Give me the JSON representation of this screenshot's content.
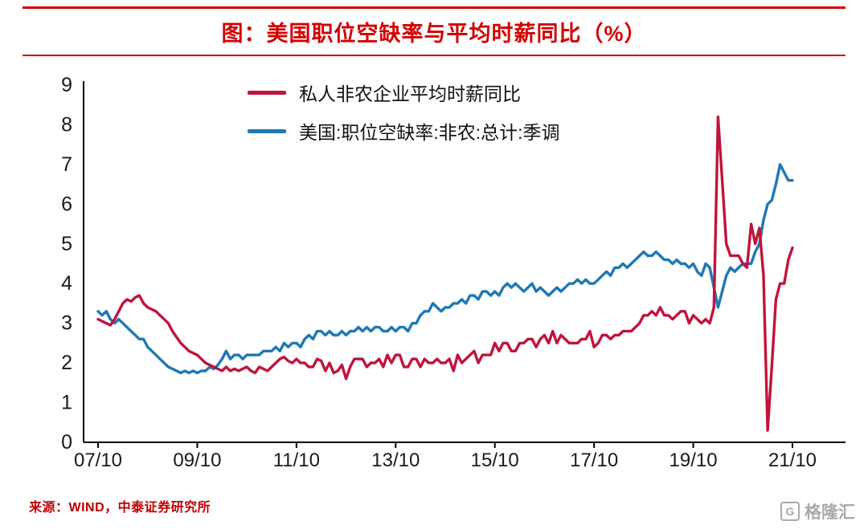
{
  "header": {
    "title": "图：美国职位空缺率与平均时薪同比（%）"
  },
  "colors": {
    "title_red": "#d40000",
    "rule_red": "#d40000",
    "source_red": "#c00000",
    "axis_text": "#1a1a1a",
    "logo_gray": "#a7aaae"
  },
  "chart_data": {
    "type": "line",
    "title": "美国职位空缺率与平均时薪同比（%）",
    "x_frequency": "monthly",
    "x_start": "2007-10",
    "x_end": "2021-10",
    "x_tick_labels": [
      "07/10",
      "09/10",
      "11/10",
      "13/10",
      "15/10",
      "17/10",
      "19/10",
      "21/10"
    ],
    "x_tick_month_index": [
      0,
      24,
      48,
      72,
      96,
      120,
      144,
      168
    ],
    "ylim": [
      0,
      9
    ],
    "yticks": [
      0,
      1,
      2,
      3,
      4,
      5,
      6,
      7,
      8,
      9
    ],
    "grid": false,
    "legend_position": "inside-top",
    "series": [
      {
        "name": "私人非农企业平均时薪同比",
        "color": "#c0143c",
        "values": [
          3.1,
          3.05,
          3.0,
          2.95,
          3.1,
          3.3,
          3.5,
          3.6,
          3.55,
          3.65,
          3.7,
          3.5,
          3.4,
          3.35,
          3.3,
          3.2,
          3.1,
          3.0,
          2.8,
          2.65,
          2.5,
          2.4,
          2.3,
          2.25,
          2.2,
          2.1,
          2.0,
          1.95,
          1.9,
          1.85,
          1.8,
          1.9,
          1.8,
          1.85,
          1.8,
          1.85,
          1.9,
          1.8,
          1.75,
          1.9,
          1.85,
          1.8,
          1.9,
          2.0,
          2.1,
          2.15,
          2.05,
          2.0,
          2.1,
          2.0,
          2.0,
          1.9,
          1.9,
          2.1,
          2.05,
          1.8,
          2.0,
          1.75,
          1.8,
          1.95,
          1.6,
          1.9,
          2.1,
          2.1,
          2.1,
          1.9,
          2.0,
          2.0,
          2.1,
          1.9,
          2.2,
          2.0,
          2.2,
          2.2,
          1.9,
          1.9,
          2.1,
          2.1,
          1.9,
          2.1,
          2.0,
          2.0,
          2.1,
          2.0,
          2.0,
          2.1,
          1.8,
          2.2,
          2.0,
          2.1,
          2.2,
          2.3,
          2.0,
          2.2,
          2.2,
          2.2,
          2.5,
          2.3,
          2.5,
          2.5,
          2.3,
          2.3,
          2.5,
          2.5,
          2.6,
          2.6,
          2.4,
          2.6,
          2.7,
          2.5,
          2.8,
          2.5,
          2.7,
          2.6,
          2.5,
          2.5,
          2.5,
          2.6,
          2.6,
          2.8,
          2.4,
          2.5,
          2.7,
          2.7,
          2.6,
          2.7,
          2.7,
          2.8,
          2.8,
          2.8,
          2.9,
          3.0,
          3.2,
          3.2,
          3.3,
          3.2,
          3.4,
          3.2,
          3.2,
          3.1,
          3.2,
          3.3,
          3.3,
          3.0,
          3.2,
          3.1,
          3.0,
          3.1,
          3.0,
          3.4,
          8.2,
          6.6,
          5.0,
          4.7,
          4.7,
          4.7,
          4.5,
          4.4,
          5.5,
          5.0,
          5.4,
          4.2,
          0.3,
          1.9,
          3.6,
          4.0,
          4.0,
          4.6,
          4.9
        ]
      },
      {
        "name": "美国:职位空缺率:非农:总计:季调",
        "color": "#1f78b4",
        "values": [
          3.3,
          3.2,
          3.3,
          3.1,
          3.0,
          3.1,
          3.0,
          2.9,
          2.8,
          2.7,
          2.6,
          2.6,
          2.4,
          2.3,
          2.2,
          2.1,
          2.0,
          1.9,
          1.85,
          1.8,
          1.75,
          1.8,
          1.75,
          1.8,
          1.75,
          1.8,
          1.8,
          1.9,
          1.85,
          1.95,
          2.1,
          2.3,
          2.1,
          2.2,
          2.2,
          2.1,
          2.2,
          2.2,
          2.2,
          2.2,
          2.3,
          2.3,
          2.3,
          2.4,
          2.3,
          2.5,
          2.4,
          2.5,
          2.5,
          2.4,
          2.6,
          2.7,
          2.6,
          2.8,
          2.8,
          2.7,
          2.8,
          2.7,
          2.7,
          2.8,
          2.7,
          2.8,
          2.8,
          2.9,
          2.8,
          2.9,
          2.8,
          2.9,
          2.9,
          2.8,
          2.8,
          2.9,
          2.8,
          2.9,
          2.9,
          2.8,
          3.0,
          3.0,
          3.2,
          3.3,
          3.3,
          3.5,
          3.4,
          3.3,
          3.4,
          3.4,
          3.5,
          3.5,
          3.6,
          3.5,
          3.7,
          3.7,
          3.6,
          3.8,
          3.8,
          3.7,
          3.8,
          3.7,
          3.9,
          4.0,
          3.9,
          4.0,
          3.9,
          3.8,
          3.9,
          4.0,
          3.8,
          3.9,
          3.8,
          3.7,
          3.8,
          3.9,
          3.8,
          3.9,
          4.0,
          4.0,
          4.1,
          4.0,
          4.1,
          4.0,
          4.0,
          4.1,
          4.2,
          4.3,
          4.2,
          4.4,
          4.4,
          4.5,
          4.4,
          4.5,
          4.6,
          4.7,
          4.8,
          4.7,
          4.7,
          4.8,
          4.7,
          4.6,
          4.6,
          4.5,
          4.6,
          4.5,
          4.5,
          4.4,
          4.5,
          4.3,
          4.2,
          4.5,
          4.4,
          3.9,
          3.4,
          3.8,
          4.2,
          4.4,
          4.3,
          4.4,
          4.5,
          4.5,
          4.5,
          4.8,
          5.0,
          5.6,
          6.0,
          6.1,
          6.5,
          7.0,
          6.8,
          6.6,
          6.6
        ]
      }
    ]
  },
  "footer": {
    "source": "来源：WIND，中泰证券研究所",
    "logo_text": "格隆汇",
    "logo_icon_letter": "G"
  }
}
